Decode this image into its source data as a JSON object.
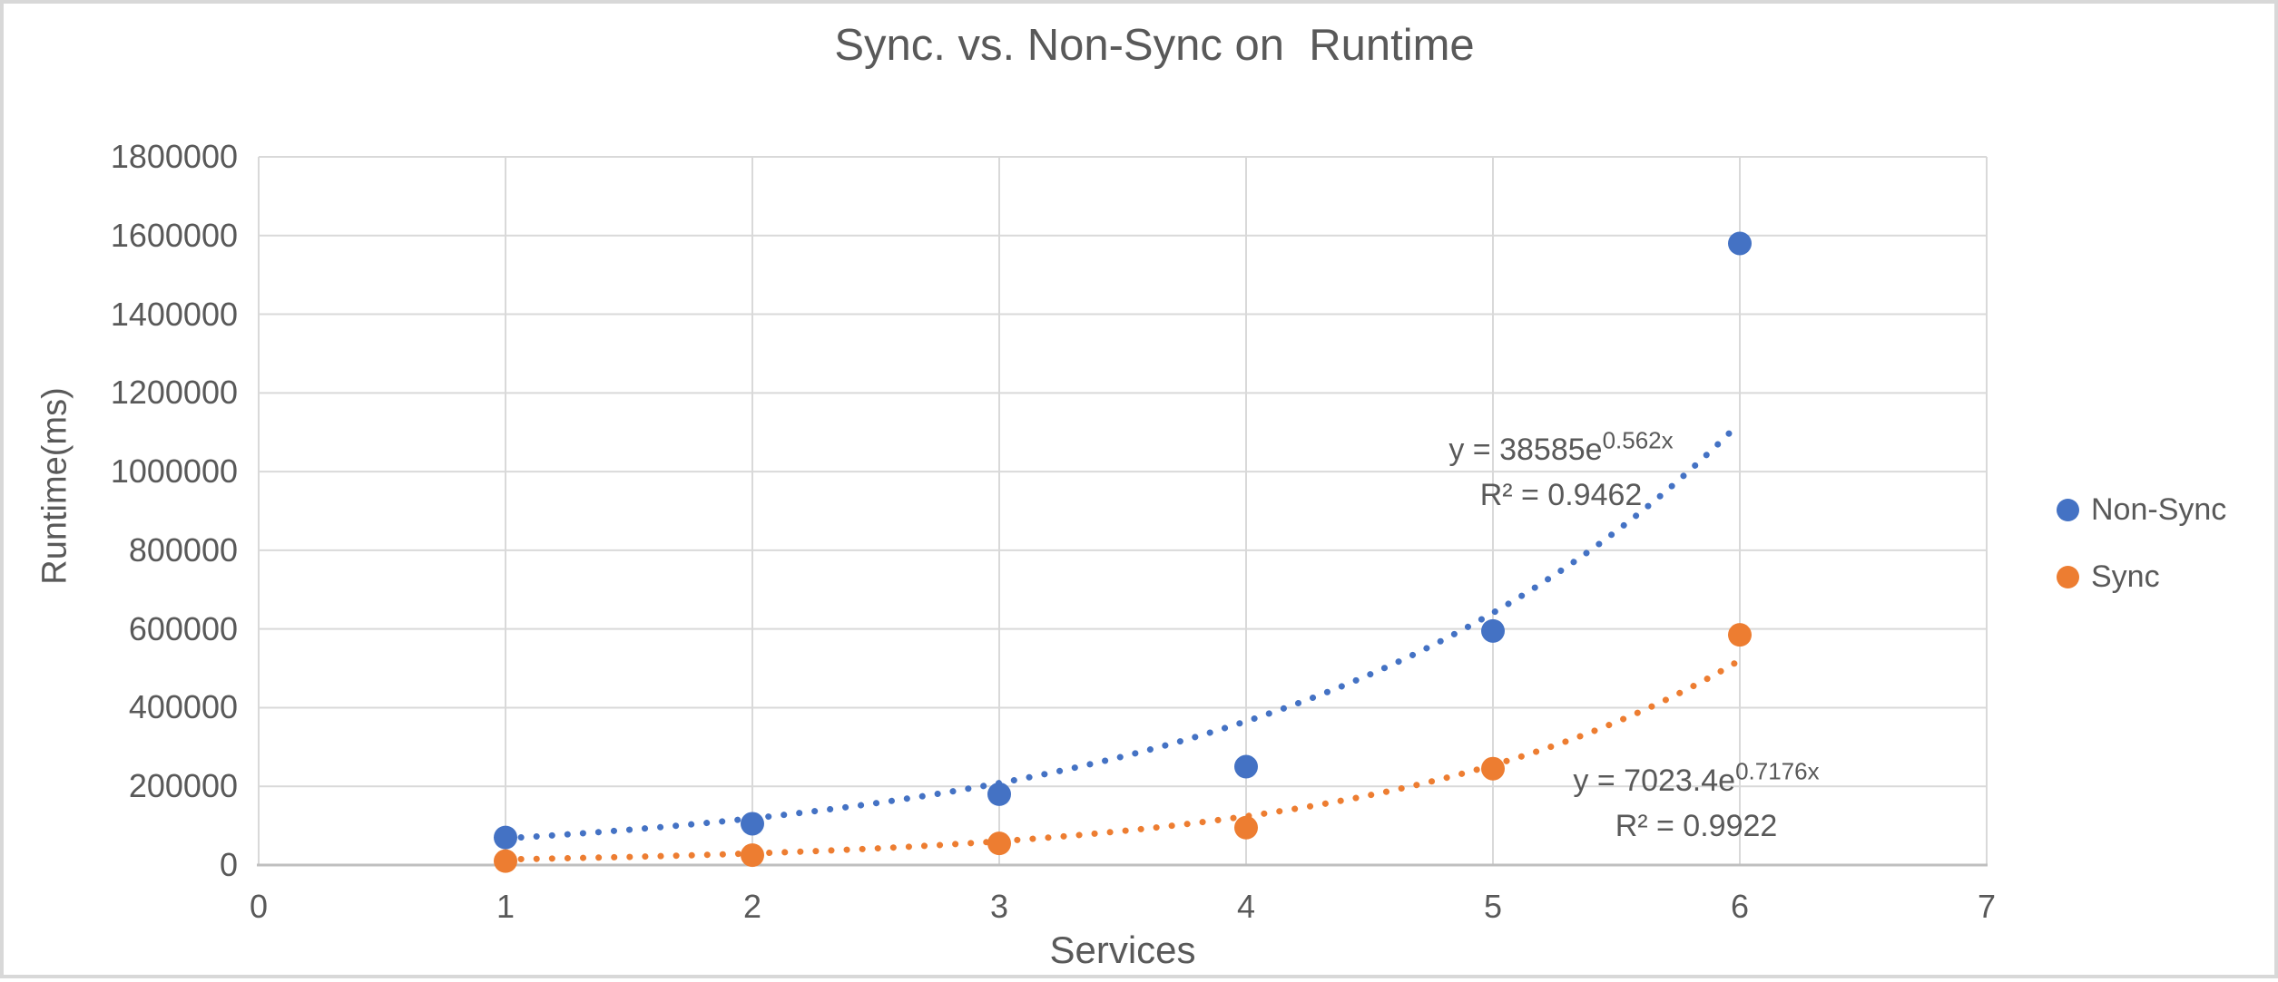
{
  "window": {
    "background_color": "#ffffff",
    "border_color": "#d8d8d8"
  },
  "chart": {
    "title": "Sync. vs. Non-Sync on  Runtime",
    "x_axis_title": "Services",
    "y_axis_title": "Runtime(ms)",
    "text_color": "#595959",
    "gridline_color": "#d9d9d9",
    "axis_line_color": "#bfbfbf"
  },
  "chart_data": {
    "type": "scatter",
    "title": "Sync. vs. Non-Sync on  Runtime",
    "xlabel": "Services",
    "ylabel": "Runtime(ms)",
    "xlim": [
      0,
      7
    ],
    "ylim": [
      0,
      1800000
    ],
    "x_ticks": [
      0,
      1,
      2,
      3,
      4,
      5,
      6,
      7
    ],
    "y_ticks": [
      0,
      200000,
      400000,
      600000,
      800000,
      1000000,
      1200000,
      1400000,
      1600000,
      1800000
    ],
    "grid": true,
    "legend_position": "right",
    "x": [
      1,
      2,
      3,
      4,
      5,
      6
    ],
    "series": [
      {
        "name": "Non-Sync",
        "color": "#4472c4",
        "values": [
          70000,
          105000,
          180000,
          250000,
          595000,
          1580000
        ]
      },
      {
        "name": "Sync",
        "color": "#ed7d31",
        "values": [
          10000,
          25000,
          55000,
          95000,
          245000,
          585000
        ]
      }
    ],
    "trendlines": [
      {
        "series": "Non-Sync",
        "type": "exponential",
        "a": 38585,
        "b": 0.562,
        "x_range": [
          1,
          6
        ],
        "eq_base": "y = 38585e",
        "eq_exp": "0.562x",
        "r2": "R² = 0.9462"
      },
      {
        "series": "Sync",
        "type": "exponential",
        "a": 7023.4,
        "b": 0.7176,
        "x_range": [
          1,
          6
        ],
        "eq_base": "y = 7023.4e",
        "eq_exp": "0.7176x",
        "r2": "R² = 0.9922"
      }
    ]
  }
}
